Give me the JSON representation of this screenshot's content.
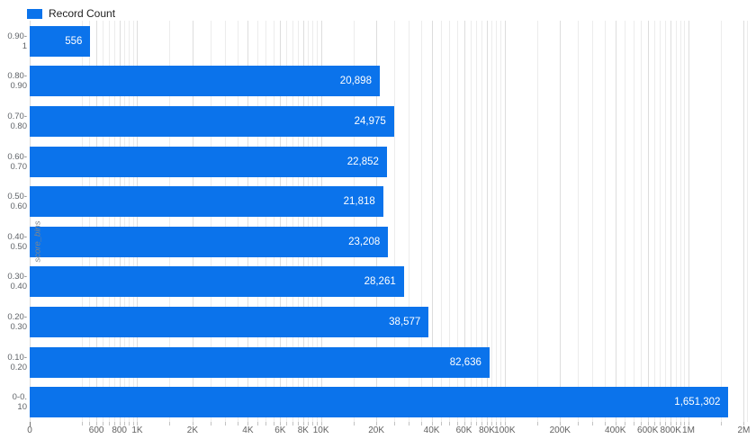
{
  "legend": {
    "label": "Record Count",
    "color": "#0b73eb",
    "position": "top-left"
  },
  "chart_data": {
    "type": "bar",
    "orientation": "horizontal",
    "title": "",
    "series_name": "Record Count",
    "xlabel": "",
    "ylabel": "score_bins",
    "xscale": "log",
    "grid": "vertical-log-minor",
    "bar_color": "#0b73eb",
    "value_label_color": "#ffffff",
    "xlim_log": [
      260,
      2105000
    ],
    "x_axis_zero_label": "0",
    "x_ticks": [
      {
        "label": "600",
        "value": 600
      },
      {
        "label": "800",
        "value": 800
      },
      {
        "label": "1K",
        "value": 1000
      },
      {
        "label": "2K",
        "value": 2000
      },
      {
        "label": "4K",
        "value": 4000
      },
      {
        "label": "6K",
        "value": 6000
      },
      {
        "label": "8K",
        "value": 8000
      },
      {
        "label": "10K",
        "value": 10000
      },
      {
        "label": "20K",
        "value": 20000
      },
      {
        "label": "40K",
        "value": 40000
      },
      {
        "label": "60K",
        "value": 60000
      },
      {
        "label": "80K",
        "value": 80000
      },
      {
        "label": "100K",
        "value": 100000
      },
      {
        "label": "200K",
        "value": 200000
      },
      {
        "label": "400K",
        "value": 400000
      },
      {
        "label": "600K",
        "value": 600000
      },
      {
        "label": "800K",
        "value": 800000
      },
      {
        "label": "1M",
        "value": 1000000
      },
      {
        "label": "2M",
        "value": 2000000
      }
    ],
    "categories": [
      "0.90-1",
      "0.80-0.90",
      "0.70-0.80",
      "0.60-0.70",
      "0.50-0.60",
      "0.40-0.50",
      "0.30-0.40",
      "0.20-0.30",
      "0.10-0.20",
      "0-0.10"
    ],
    "bins": [
      {
        "label_line1": "0.90-",
        "label_line2": "1",
        "value": 556,
        "value_label": "556"
      },
      {
        "label_line1": "0.80-",
        "label_line2": "0.90",
        "value": 20898,
        "value_label": "20,898"
      },
      {
        "label_line1": "0.70-",
        "label_line2": "0.80",
        "value": 24975,
        "value_label": "24,975"
      },
      {
        "label_line1": "0.60-",
        "label_line2": "0.70",
        "value": 22852,
        "value_label": "22,852"
      },
      {
        "label_line1": "0.50-",
        "label_line2": "0.60",
        "value": 21818,
        "value_label": "21,818"
      },
      {
        "label_line1": "0.40-",
        "label_line2": "0.50",
        "value": 23208,
        "value_label": "23,208"
      },
      {
        "label_line1": "0.30-",
        "label_line2": "0.40",
        "value": 28261,
        "value_label": "28,261"
      },
      {
        "label_line1": "0.20-",
        "label_line2": "0.30",
        "value": 38577,
        "value_label": "38,577"
      },
      {
        "label_line1": "0.10-",
        "label_line2": "0.20",
        "value": 82636,
        "value_label": "82,636"
      },
      {
        "label_line1": "0-0.",
        "label_line2": "10",
        "value": 1651302,
        "value_label": "1,651,302"
      }
    ]
  }
}
